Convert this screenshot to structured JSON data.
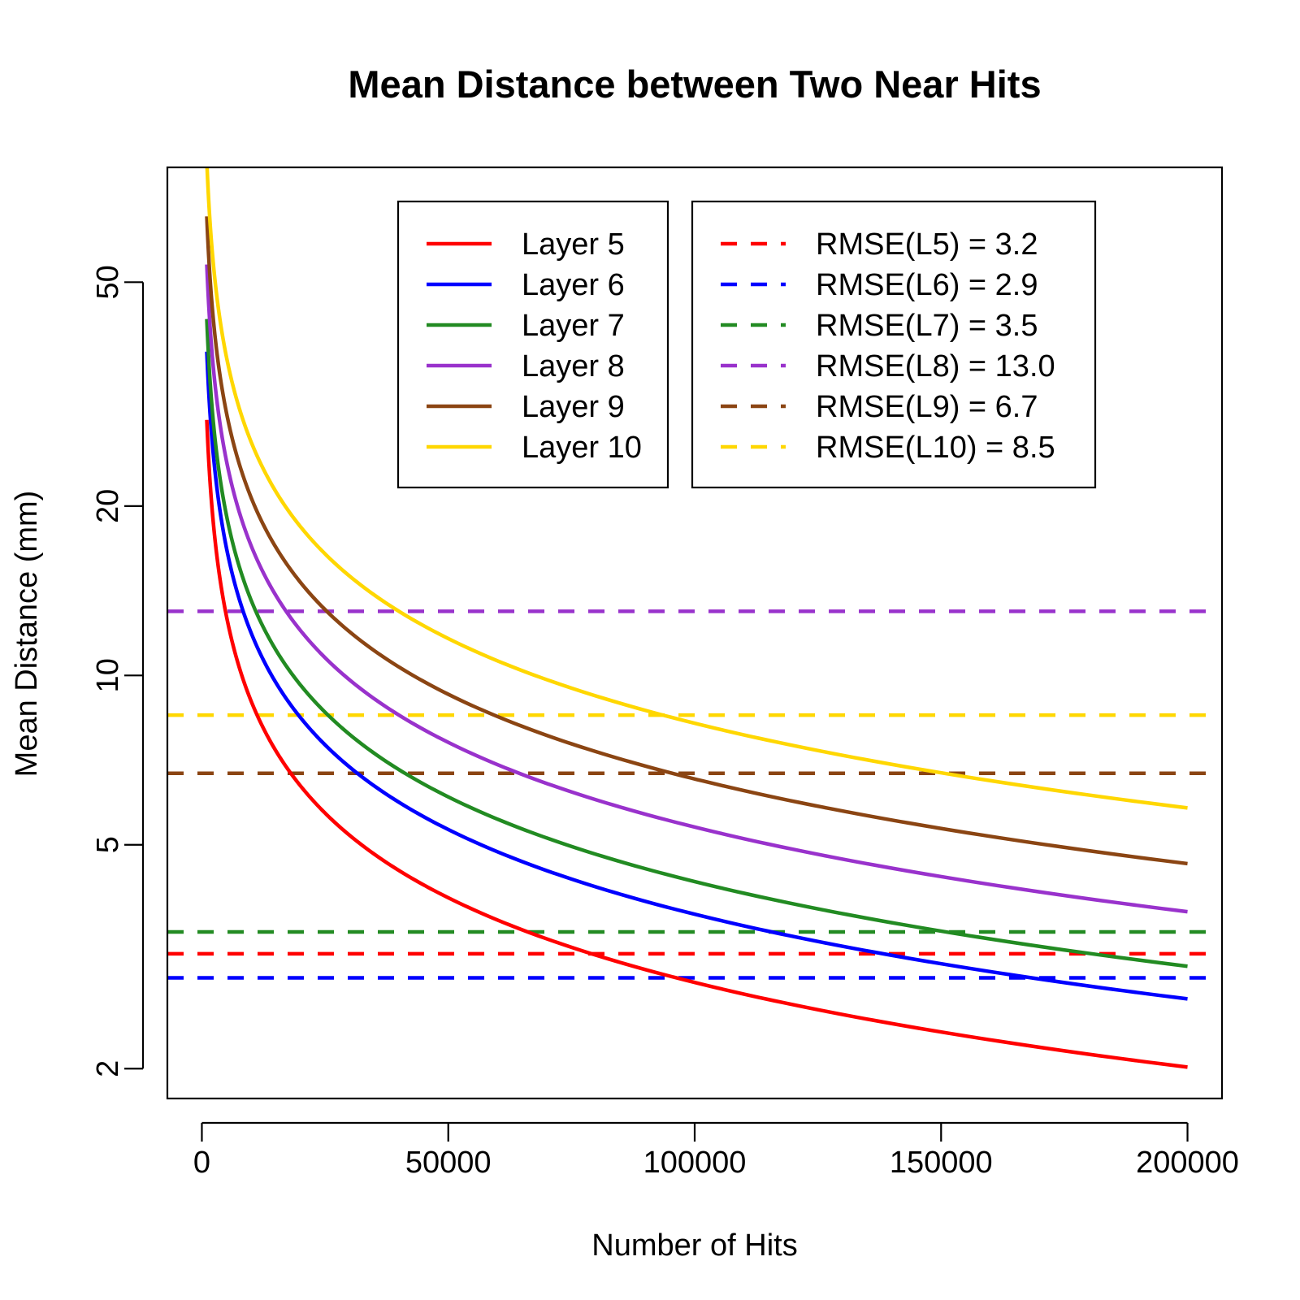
{
  "chart_data": {
    "type": "line",
    "title": "Mean Distance between Two Near Hits",
    "xlabel": "Number of Hits",
    "ylabel": "Mean Distance (mm)",
    "xlim": [
      -7000,
      207000
    ],
    "ylim": [
      1.77,
      80
    ],
    "y_scale": "log",
    "grid": false,
    "x_ticks": [
      0,
      50000,
      100000,
      150000,
      200000
    ],
    "x_tick_labels": [
      "0",
      "50000",
      "100000",
      "150000",
      "200000"
    ],
    "y_ticks": [
      2,
      5,
      10,
      20,
      50
    ],
    "y_tick_labels": [
      "2",
      "5",
      "10",
      "20",
      "50"
    ],
    "x_range": [
      1000,
      200000
    ],
    "series": [
      {
        "name": "Layer 5",
        "color": "#ff0000",
        "line": "solid",
        "k": 900,
        "p": 0.5
      },
      {
        "name": "Layer 6",
        "color": "#0000ff",
        "line": "solid",
        "k": 1190,
        "p": 0.5
      },
      {
        "name": "Layer 7",
        "color": "#228b22",
        "line": "solid",
        "k": 1360,
        "p": 0.5
      },
      {
        "name": "Layer 8",
        "color": "#9932cc",
        "line": "solid",
        "k": 1700,
        "p": 0.5
      },
      {
        "name": "Layer 9",
        "color": "#8b4513",
        "line": "solid",
        "k": 2070,
        "p": 0.5
      },
      {
        "name": "Layer 10",
        "color": "#ffd700",
        "line": "solid",
        "k": 2600,
        "p": 0.5
      }
    ],
    "reference_lines": [
      {
        "name": "RMSE(L5) = 3.2",
        "value": 3.2,
        "color": "#ff0000",
        "line": "dashed"
      },
      {
        "name": "RMSE(L6) = 2.9",
        "value": 2.9,
        "color": "#0000ff",
        "line": "dashed"
      },
      {
        "name": "RMSE(L7) = 3.5",
        "value": 3.5,
        "color": "#228b22",
        "line": "dashed"
      },
      {
        "name": "RMSE(L8) = 13.0",
        "value": 13.0,
        "color": "#9932cc",
        "line": "dashed"
      },
      {
        "name": "RMSE(L9) = 6.7",
        "value": 6.7,
        "color": "#8b4513",
        "line": "dashed"
      },
      {
        "name": "RMSE(L10) = 8.5",
        "value": 8.5,
        "color": "#ffd700",
        "line": "dashed"
      }
    ],
    "legends": [
      {
        "position": "top-center",
        "entries": [
          "Layer 5",
          "Layer 6",
          "Layer 7",
          "Layer 8",
          "Layer 9",
          "Layer 10"
        ]
      },
      {
        "position": "top-right",
        "entries": [
          "RMSE(L5) = 3.2",
          "RMSE(L6) = 2.9",
          "RMSE(L7) = 3.5",
          "RMSE(L8) = 13.0",
          "RMSE(L9) = 6.7",
          "RMSE(L10) = 8.5"
        ]
      }
    ]
  }
}
